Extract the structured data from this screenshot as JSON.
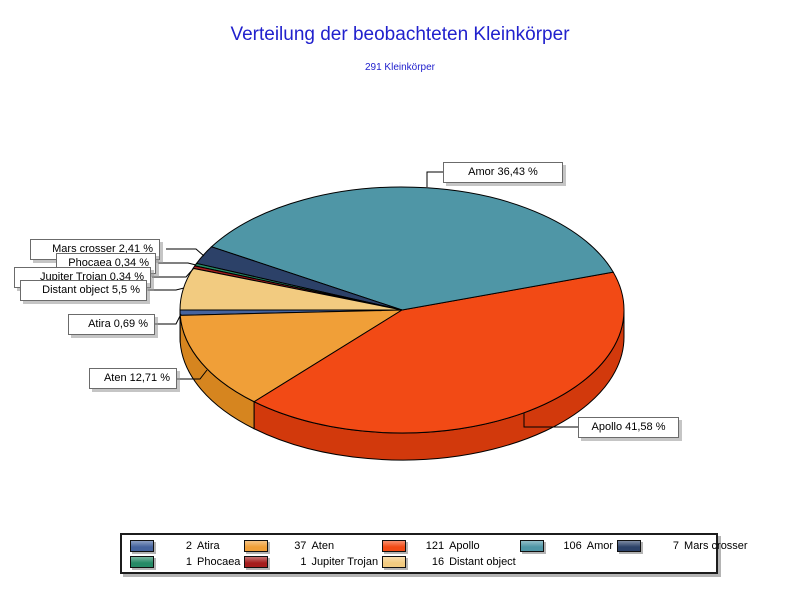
{
  "page": {
    "background": "#ffffff"
  },
  "chart_data": {
    "type": "pie",
    "style": "3d",
    "title": "Verteilung der beobachteten Kleinkörper",
    "subtitle": "291 Kleinkörper",
    "total": 291,
    "title_color": "#2121cd",
    "legend_layout": {
      "position": "bottom",
      "columns": 5,
      "rows": 2
    },
    "slices": [
      {
        "name": "Atira",
        "count": 2,
        "pct": 0.69,
        "pct_label": "0,69 %",
        "callout": "Atira 0,69 %",
        "color": "#45639e",
        "side_color": "#334b7e"
      },
      {
        "name": "Aten",
        "count": 37,
        "pct": 12.71,
        "pct_label": "12,71 %",
        "callout": "Aten 12,71 %",
        "color": "#f09f38",
        "side_color": "#d6851f"
      },
      {
        "name": "Apollo",
        "count": 121,
        "pct": 41.58,
        "pct_label": "41,58 %",
        "callout": "Apollo 41,58 %",
        "color": "#f24a15",
        "side_color": "#d2390c"
      },
      {
        "name": "Amor",
        "count": 106,
        "pct": 36.43,
        "pct_label": "36,43 %",
        "callout": "Amor 36,43 %",
        "color": "#4f96a6",
        "side_color": "#3d7584"
      },
      {
        "name": "Mars crosser",
        "count": 7,
        "pct": 2.41,
        "pct_label": "2,41 %",
        "callout": "Mars crosser 2,41 %",
        "color": "#2c4168",
        "side_color": "#1f2f4e"
      },
      {
        "name": "Phocaea",
        "count": 1,
        "pct": 0.34,
        "pct_label": "0,34 %",
        "callout": "Phocaea 0,34 %",
        "color": "#268a66",
        "side_color": "#1c6c4f"
      },
      {
        "name": "Jupiter Trojan",
        "count": 1,
        "pct": 0.34,
        "pct_label": "0,34 %",
        "callout": "Jupiter Trojan 0,34 %",
        "color": "#a51d1d",
        "side_color": "#801414"
      },
      {
        "name": "Distant object",
        "count": 16,
        "pct": 5.5,
        "pct_label": "5,5 %",
        "callout": "Distant object 5,5 %",
        "color": "#f2cb80",
        "side_color": "#d9ad5c"
      }
    ]
  }
}
